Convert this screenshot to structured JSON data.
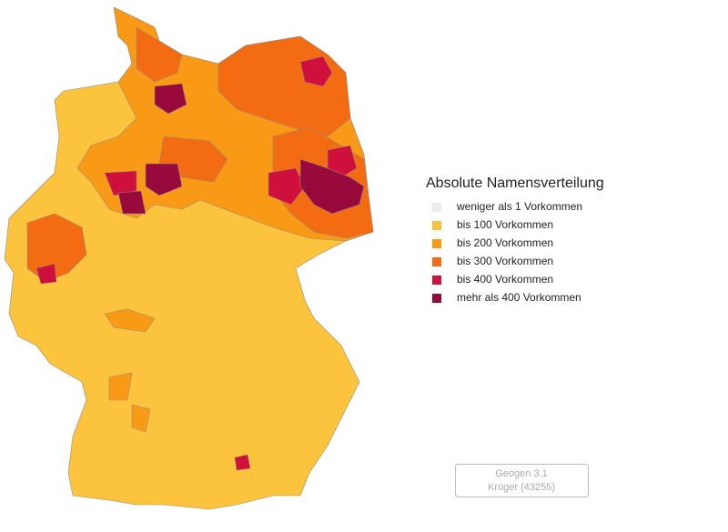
{
  "title": "Absolute Namensverteilung",
  "legend": [
    {
      "label": "weniger als 1 Vorkommen",
      "color": "#ebebeb"
    },
    {
      "label": "bis 100 Vorkommen",
      "color": "#fcc43c"
    },
    {
      "label": "bis 200 Vorkommen",
      "color": "#f99a16"
    },
    {
      "label": "bis 300 Vorkommen",
      "color": "#f36c12"
    },
    {
      "label": "bis 400 Vorkommen",
      "color": "#d0103c"
    },
    {
      "label": "mehr als 400 Vorkommen",
      "color": "#980a3c"
    }
  ],
  "footer": {
    "line1": "Geogen 3.1",
    "line2": "Krüger (43255)"
  }
}
